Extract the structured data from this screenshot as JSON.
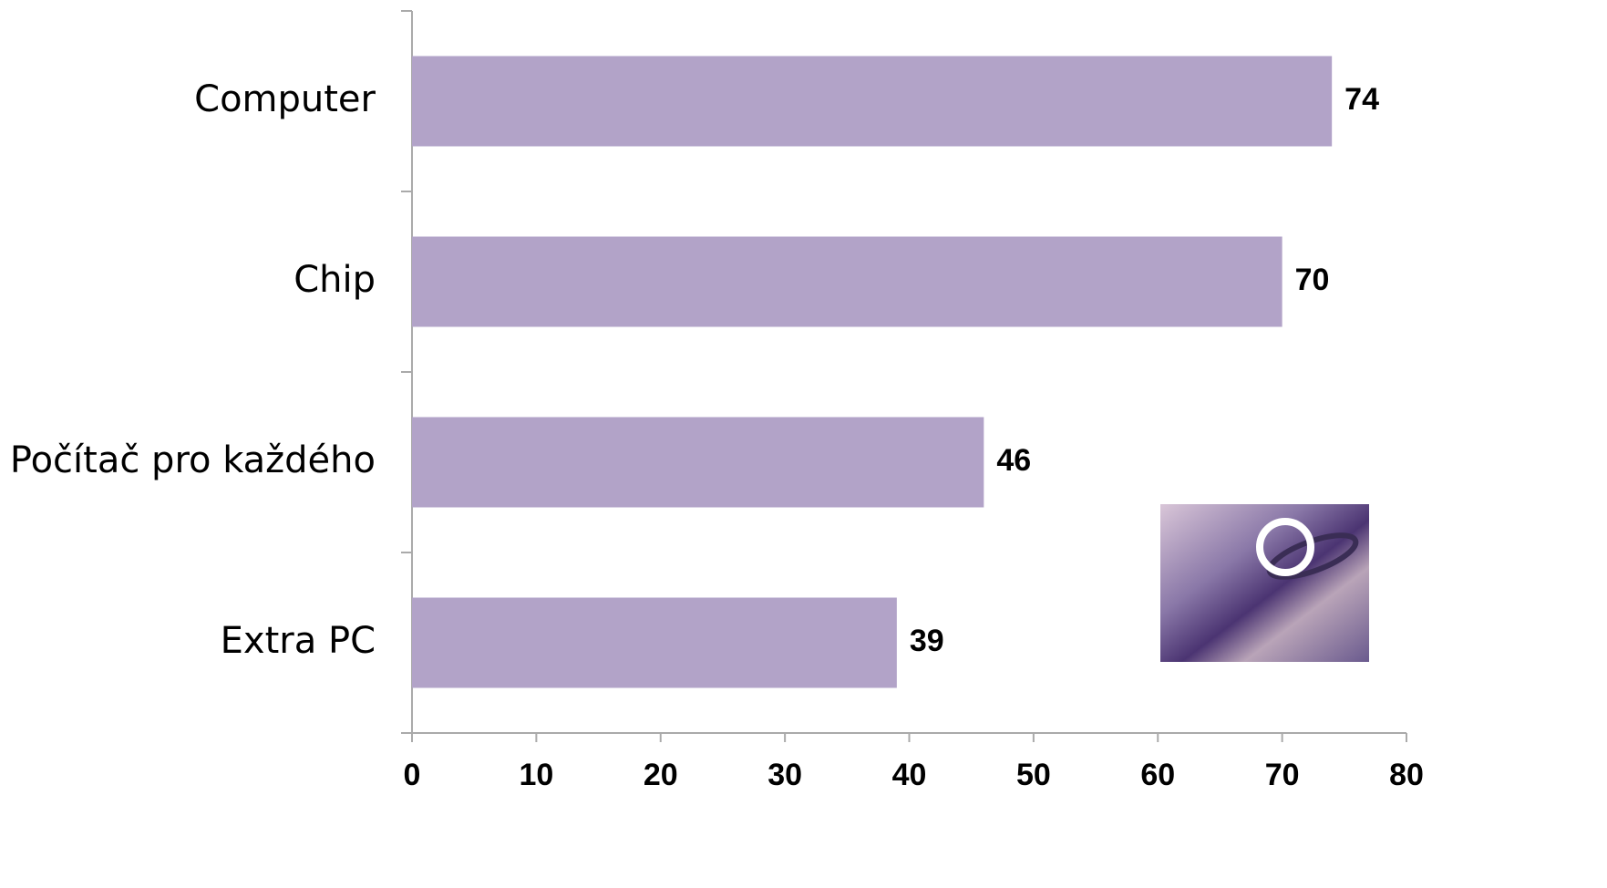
{
  "chart_data": {
    "type": "bar",
    "orientation": "horizontal",
    "categories": [
      "Computer",
      "Chip",
      "Počítač pro každého",
      "Extra PC"
    ],
    "values": [
      74,
      70,
      46,
      39
    ],
    "color": "#b2a3c8",
    "xlim": [
      0,
      80
    ],
    "xticks": [
      0,
      10,
      20,
      30,
      40,
      50,
      60,
      70,
      80
    ],
    "grid": false,
    "data_labels": true
  }
}
